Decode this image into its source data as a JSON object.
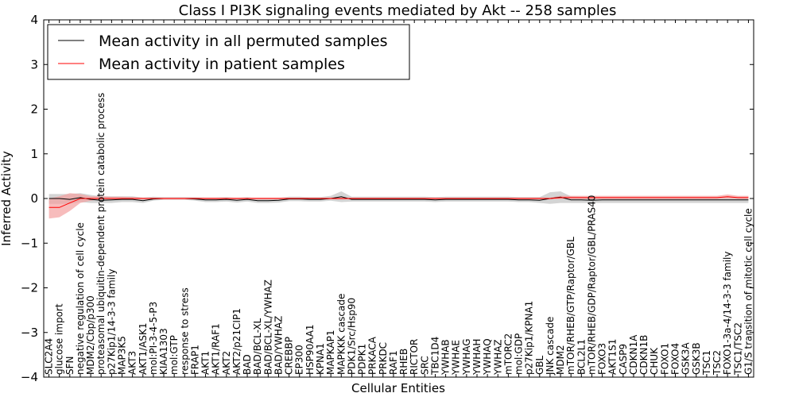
{
  "chart_data": {
    "type": "line",
    "title": "Class I PI3K signaling events mediated by Akt -- 258 samples",
    "xlabel": "Cellular Entities",
    "ylabel": "Inferred Activity",
    "ylim": [
      -4,
      4
    ],
    "yticks": [
      -4,
      -3,
      -2,
      -1,
      0,
      1,
      2,
      3,
      4
    ],
    "grid": false,
    "legend_position": "top-left",
    "categories": [
      "SLC2A4",
      "glucose import",
      "SFN",
      "negative regulation of cell cycle",
      "MDM2/Cbp/p300",
      "proteasomal ubiquitin-dependent protein catabolic process",
      "p27Kip1/14-3-3 family",
      "MAP3K5",
      "AKT3",
      "AKT1/ASK1",
      "mol:PI-3-4-5-P3",
      "KIAA1303",
      "mol:GTP",
      "response to stress",
      "FRAP1",
      "AKT1",
      "AKT1/RAF1",
      "AKT2",
      "AKT2/p21CIP1",
      "BAD",
      "BAD/BCL-XL",
      "BAD/BCL-XL/YWHAZ",
      "BAD/YWHAZ",
      "CREBBP",
      "EP300",
      "HSP90AA1",
      "KPNA1",
      "MAPKAP1",
      "MAPKKK cascade",
      "PDK1/Src/Hsp90",
      "PDPK1",
      "PRKACA",
      "PRKDC",
      "RAF1",
      "RHEB",
      "RICTOR",
      "SRC",
      "TBC1D4",
      "YWHAB",
      "YWHAE",
      "YWHAG",
      "YWHAH",
      "YWHAQ",
      "YWHAZ",
      "mTORC2",
      "mol:GDP",
      "p27Kip1/KPNA1",
      "GBL",
      "JNK cascade",
      "MDM2",
      "mTOR/RHEB/GTP/Raptor/GBL",
      "BCL2L1",
      "mTOR/RHEB/GDP/Raptor/GBL/PRAS40",
      "FOXO3",
      "AKT1S1",
      "CASP9",
      "CDKN1A",
      "CDKN1B",
      "CHUK",
      "FOXO1",
      "FOXO4",
      "GSK3A",
      "GSK3B",
      "TSC1",
      "TSC2",
      "FOXO1-3a-4/14-3-3 family",
      "TSC1/TSC2",
      "G1/S transition of mitotic cell cycle"
    ],
    "series": [
      {
        "name": "Mean activity in all permuted samples",
        "color": "#000000",
        "band_color": "#cccccc",
        "values": [
          0.0,
          0.0,
          -0.02,
          0.02,
          -0.02,
          -0.04,
          -0.03,
          -0.02,
          -0.02,
          -0.05,
          -0.01,
          0.0,
          0.0,
          0.0,
          -0.01,
          -0.03,
          -0.03,
          -0.02,
          -0.04,
          -0.02,
          -0.05,
          -0.05,
          -0.04,
          -0.01,
          -0.01,
          -0.02,
          -0.02,
          0.0,
          0.04,
          -0.02,
          -0.02,
          -0.02,
          -0.02,
          -0.02,
          -0.02,
          -0.02,
          -0.02,
          -0.03,
          -0.02,
          -0.02,
          -0.02,
          -0.02,
          -0.02,
          -0.02,
          -0.02,
          -0.03,
          -0.03,
          -0.04,
          0.0,
          0.03,
          -0.03,
          -0.03,
          -0.04,
          -0.03,
          -0.03,
          -0.03,
          -0.03,
          -0.03,
          -0.03,
          -0.03,
          -0.03,
          -0.03,
          -0.03,
          -0.03,
          -0.03,
          -0.03,
          -0.03,
          -0.03
        ],
        "lower": [
          -0.12,
          -0.12,
          -0.12,
          -0.08,
          -0.1,
          -0.1,
          -0.1,
          -0.08,
          -0.08,
          -0.1,
          -0.05,
          -0.03,
          -0.03,
          -0.03,
          -0.05,
          -0.08,
          -0.08,
          -0.07,
          -0.09,
          -0.07,
          -0.1,
          -0.1,
          -0.09,
          -0.06,
          -0.06,
          -0.07,
          -0.07,
          -0.05,
          -0.08,
          -0.07,
          -0.07,
          -0.07,
          -0.07,
          -0.07,
          -0.07,
          -0.07,
          -0.07,
          -0.08,
          -0.07,
          -0.07,
          -0.07,
          -0.07,
          -0.07,
          -0.07,
          -0.07,
          -0.08,
          -0.08,
          -0.1,
          -0.12,
          -0.1,
          -0.1,
          -0.1,
          -0.1,
          -0.1,
          -0.1,
          -0.1,
          -0.1,
          -0.1,
          -0.1,
          -0.1,
          -0.1,
          -0.1,
          -0.1,
          -0.1,
          -0.1,
          -0.1,
          -0.1,
          -0.1
        ],
        "upper": [
          0.1,
          0.1,
          0.1,
          0.12,
          0.08,
          0.05,
          0.05,
          0.05,
          0.05,
          0.02,
          0.04,
          0.03,
          0.03,
          0.03,
          0.03,
          0.02,
          0.02,
          0.03,
          0.01,
          0.03,
          0.0,
          0.0,
          0.01,
          0.04,
          0.04,
          0.03,
          0.03,
          0.06,
          0.16,
          0.04,
          0.04,
          0.04,
          0.04,
          0.04,
          0.04,
          0.04,
          0.04,
          0.03,
          0.04,
          0.04,
          0.04,
          0.04,
          0.04,
          0.04,
          0.04,
          0.03,
          0.03,
          0.03,
          0.14,
          0.16,
          0.05,
          0.04,
          0.03,
          0.03,
          0.03,
          0.03,
          0.03,
          0.03,
          0.03,
          0.03,
          0.03,
          0.03,
          0.03,
          0.03,
          0.03,
          0.03,
          0.03,
          0.03
        ]
      },
      {
        "name": "Mean activity in patient samples",
        "color": "#ff0000",
        "band_color": "#f4a0a0",
        "values": [
          -0.2,
          -0.2,
          -0.1,
          0.0,
          0.0,
          0.0,
          0.0,
          0.0,
          0.0,
          0.0,
          0.0,
          0.0,
          0.0,
          0.0,
          0.0,
          0.0,
          0.0,
          0.0,
          0.0,
          0.0,
          0.0,
          0.0,
          0.0,
          0.0,
          0.0,
          0.0,
          0.0,
          0.0,
          0.0,
          0.0,
          0.0,
          0.0,
          0.0,
          0.0,
          0.0,
          0.0,
          0.0,
          0.0,
          0.0,
          0.0,
          0.0,
          0.0,
          0.0,
          0.0,
          0.0,
          0.0,
          0.0,
          0.0,
          0.0,
          0.02,
          0.02,
          0.02,
          0.02,
          0.02,
          0.02,
          0.02,
          0.02,
          0.02,
          0.02,
          0.02,
          0.02,
          0.02,
          0.02,
          0.02,
          0.02,
          0.04,
          0.02,
          0.02
        ],
        "lower": [
          -0.45,
          -0.42,
          -0.28,
          -0.1,
          -0.05,
          -0.02,
          -0.02,
          -0.02,
          -0.02,
          -0.02,
          -0.02,
          -0.02,
          -0.02,
          -0.02,
          -0.02,
          -0.02,
          -0.02,
          -0.02,
          -0.02,
          -0.02,
          -0.02,
          -0.02,
          -0.02,
          -0.02,
          -0.02,
          -0.02,
          -0.02,
          -0.02,
          -0.02,
          -0.02,
          -0.02,
          -0.02,
          -0.02,
          -0.02,
          -0.02,
          -0.02,
          -0.02,
          -0.02,
          -0.02,
          -0.02,
          -0.02,
          -0.02,
          -0.02,
          -0.02,
          -0.02,
          -0.02,
          -0.02,
          -0.02,
          -0.02,
          -0.01,
          -0.01,
          -0.01,
          -0.01,
          -0.01,
          -0.01,
          -0.01,
          -0.01,
          -0.01,
          -0.01,
          -0.01,
          -0.01,
          -0.01,
          -0.01,
          -0.01,
          -0.01,
          0.0,
          -0.01,
          -0.01
        ],
        "upper": [
          0.0,
          0.05,
          0.12,
          0.1,
          0.05,
          0.05,
          0.04,
          0.04,
          0.03,
          0.02,
          0.02,
          0.02,
          0.02,
          0.02,
          0.02,
          0.02,
          0.02,
          0.02,
          0.02,
          0.02,
          0.02,
          0.02,
          0.02,
          0.02,
          0.02,
          0.02,
          0.02,
          0.02,
          0.02,
          0.02,
          0.02,
          0.02,
          0.02,
          0.02,
          0.02,
          0.02,
          0.02,
          0.02,
          0.02,
          0.02,
          0.02,
          0.02,
          0.02,
          0.02,
          0.02,
          0.02,
          0.02,
          0.02,
          0.02,
          0.06,
          0.06,
          0.06,
          0.06,
          0.06,
          0.06,
          0.06,
          0.06,
          0.06,
          0.06,
          0.06,
          0.06,
          0.06,
          0.06,
          0.06,
          0.06,
          0.09,
          0.06,
          0.06
        ]
      }
    ]
  }
}
